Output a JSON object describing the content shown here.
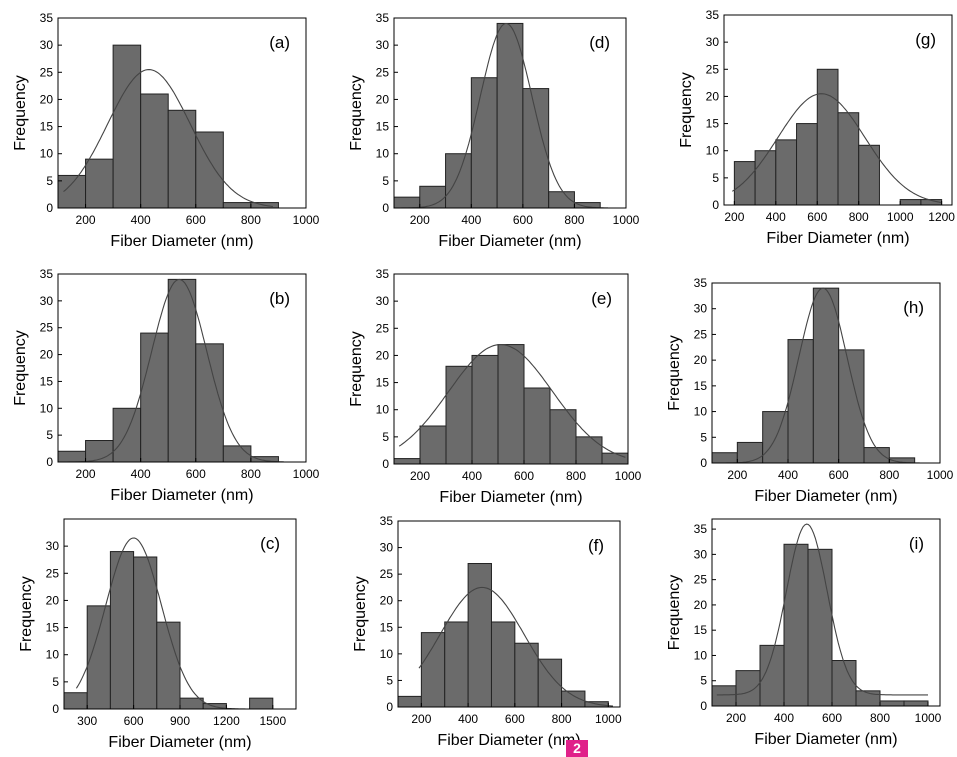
{
  "figure": {
    "badge": "2",
    "colors": {
      "bar": "#6b6b6b",
      "bar_edge": "#222222",
      "curve": "#444444",
      "axis": "#000000"
    }
  },
  "chart_data": [
    {
      "id": "a",
      "panel_label": "(a)",
      "type": "bar",
      "xlabel": "Fiber Diameter (nm)",
      "ylabel": "Frequency",
      "xlim": [
        100,
        1000
      ],
      "ylim": [
        0,
        35
      ],
      "xticks": [
        200,
        400,
        600,
        800,
        1000
      ],
      "yticks": [
        0,
        5,
        10,
        15,
        20,
        25,
        30,
        35
      ],
      "bin_width": 100,
      "bars": [
        {
          "x": 150,
          "y": 6
        },
        {
          "x": 250,
          "y": 9
        },
        {
          "x": 350,
          "y": 30
        },
        {
          "x": 450,
          "y": 21
        },
        {
          "x": 550,
          "y": 18
        },
        {
          "x": 650,
          "y": 14
        },
        {
          "x": 750,
          "y": 1
        },
        {
          "x": 850,
          "y": 1
        }
      ],
      "fit": {
        "type": "gaussian",
        "mean": 430,
        "sd": 150,
        "peak": 25.5,
        "range": [
          120,
          880
        ]
      }
    },
    {
      "id": "d",
      "panel_label": "(d)",
      "type": "bar",
      "xlabel": "Fiber Diameter (nm)",
      "ylabel": "Frequency",
      "xlim": [
        100,
        1000
      ],
      "ylim": [
        0,
        35
      ],
      "xticks": [
        200,
        400,
        600,
        800,
        1000
      ],
      "yticks": [
        0,
        5,
        10,
        15,
        20,
        25,
        30,
        35
      ],
      "bin_width": 100,
      "bars": [
        {
          "x": 150,
          "y": 2
        },
        {
          "x": 250,
          "y": 4
        },
        {
          "x": 350,
          "y": 10
        },
        {
          "x": 450,
          "y": 24
        },
        {
          "x": 550,
          "y": 34
        },
        {
          "x": 650,
          "y": 22
        },
        {
          "x": 750,
          "y": 3
        },
        {
          "x": 850,
          "y": 1
        }
      ],
      "fit": {
        "type": "gaussian",
        "mean": 535,
        "sd": 100,
        "peak": 34,
        "range": [
          120,
          930
        ]
      }
    },
    {
      "id": "g",
      "panel_label": "(g)",
      "type": "bar",
      "xlabel": "Fiber Diameter (nm)",
      "ylabel": "Frequency",
      "xlim": [
        150,
        1250
      ],
      "ylim": [
        0,
        35
      ],
      "xticks": [
        200,
        400,
        600,
        800,
        1000,
        1200
      ],
      "yticks": [
        0,
        5,
        10,
        15,
        20,
        25,
        30,
        35
      ],
      "bin_width": 100,
      "bars": [
        {
          "x": 250,
          "y": 8
        },
        {
          "x": 350,
          "y": 10
        },
        {
          "x": 450,
          "y": 12
        },
        {
          "x": 550,
          "y": 15
        },
        {
          "x": 650,
          "y": 25
        },
        {
          "x": 750,
          "y": 17
        },
        {
          "x": 850,
          "y": 11
        },
        {
          "x": 1050,
          "y": 1
        },
        {
          "x": 1150,
          "y": 1
        }
      ],
      "fit": {
        "type": "gaussian",
        "mean": 620,
        "sd": 210,
        "peak": 20.5,
        "range": [
          190,
          1200
        ]
      }
    },
    {
      "id": "b",
      "panel_label": "(b)",
      "type": "bar",
      "xlabel": "Fiber Diameter (nm)",
      "ylabel": "Frequency",
      "xlim": [
        100,
        1000
      ],
      "ylim": [
        0,
        35
      ],
      "xticks": [
        200,
        400,
        600,
        800,
        1000
      ],
      "yticks": [
        0,
        5,
        10,
        15,
        20,
        25,
        30,
        35
      ],
      "bin_width": 100,
      "bars": [
        {
          "x": 150,
          "y": 2
        },
        {
          "x": 250,
          "y": 4
        },
        {
          "x": 350,
          "y": 10
        },
        {
          "x": 450,
          "y": 24
        },
        {
          "x": 550,
          "y": 34
        },
        {
          "x": 650,
          "y": 22
        },
        {
          "x": 750,
          "y": 3
        },
        {
          "x": 850,
          "y": 1
        }
      ],
      "fit": {
        "type": "gaussian",
        "mean": 540,
        "sd": 100,
        "peak": 34,
        "range": [
          120,
          920
        ]
      }
    },
    {
      "id": "e",
      "panel_label": "(e)",
      "type": "bar",
      "xlabel": "Fiber Diameter (nm)",
      "ylabel": "Frequency",
      "xlim": [
        100,
        1000
      ],
      "ylim": [
        0,
        35
      ],
      "xticks": [
        200,
        400,
        600,
        800,
        1000
      ],
      "yticks": [
        0,
        5,
        10,
        15,
        20,
        25,
        30,
        35
      ],
      "bin_width": 100,
      "bars": [
        {
          "x": 150,
          "y": 1
        },
        {
          "x": 250,
          "y": 7
        },
        {
          "x": 350,
          "y": 18
        },
        {
          "x": 450,
          "y": 20
        },
        {
          "x": 550,
          "y": 22
        },
        {
          "x": 650,
          "y": 14
        },
        {
          "x": 750,
          "y": 10
        },
        {
          "x": 850,
          "y": 5
        },
        {
          "x": 950,
          "y": 2
        }
      ],
      "fit": {
        "type": "gaussian",
        "mean": 510,
        "sd": 200,
        "peak": 22,
        "range": [
          120,
          990
        ]
      }
    },
    {
      "id": "h",
      "panel_label": "(h)",
      "type": "bar",
      "xlabel": "Fiber Diameter (nm)",
      "ylabel": "Frequency",
      "xlim": [
        100,
        1000
      ],
      "ylim": [
        0,
        35
      ],
      "xticks": [
        200,
        400,
        600,
        800,
        1000
      ],
      "yticks": [
        0,
        5,
        10,
        15,
        20,
        25,
        30,
        35
      ],
      "bin_width": 100,
      "bars": [
        {
          "x": 150,
          "y": 2
        },
        {
          "x": 250,
          "y": 4
        },
        {
          "x": 350,
          "y": 10
        },
        {
          "x": 450,
          "y": 24
        },
        {
          "x": 550,
          "y": 34
        },
        {
          "x": 650,
          "y": 22
        },
        {
          "x": 750,
          "y": 3
        },
        {
          "x": 850,
          "y": 1
        }
      ],
      "fit": {
        "type": "gaussian",
        "mean": 538,
        "sd": 95,
        "peak": 34,
        "range": [
          120,
          920
        ]
      }
    },
    {
      "id": "c",
      "panel_label": "(c)",
      "type": "bar",
      "xlabel": "Fiber Diameter (nm)",
      "ylabel": "Frequency",
      "xlim": [
        150,
        1650
      ],
      "ylim": [
        0,
        35
      ],
      "xticks": [
        300,
        600,
        900,
        1200,
        1500
      ],
      "yticks": [
        0,
        5,
        10,
        15,
        20,
        25,
        30
      ],
      "bin_width": 150,
      "bars": [
        {
          "x": 225,
          "y": 3
        },
        {
          "x": 375,
          "y": 19
        },
        {
          "x": 525,
          "y": 29
        },
        {
          "x": 675,
          "y": 28
        },
        {
          "x": 825,
          "y": 16
        },
        {
          "x": 975,
          "y": 2
        },
        {
          "x": 1125,
          "y": 1
        },
        {
          "x": 1425,
          "y": 2
        }
      ],
      "fit": {
        "type": "gaussian",
        "mean": 600,
        "sd": 180,
        "peak": 31.5,
        "range": [
          230,
          1560
        ]
      }
    },
    {
      "id": "f",
      "panel_label": "(f)",
      "type": "bar",
      "xlabel": "Fiber Diameter (nm)",
      "ylabel": "Frequency",
      "xlim": [
        100,
        1050
      ],
      "ylim": [
        0,
        35
      ],
      "xticks": [
        200,
        400,
        600,
        800,
        1000
      ],
      "yticks": [
        0,
        5,
        10,
        15,
        20,
        25,
        30,
        35
      ],
      "bin_width": 100,
      "bars": [
        {
          "x": 150,
          "y": 2
        },
        {
          "x": 250,
          "y": 14
        },
        {
          "x": 350,
          "y": 16
        },
        {
          "x": 450,
          "y": 27
        },
        {
          "x": 550,
          "y": 16
        },
        {
          "x": 650,
          "y": 12
        },
        {
          "x": 750,
          "y": 9
        },
        {
          "x": 850,
          "y": 3
        },
        {
          "x": 950,
          "y": 1
        }
      ],
      "fit": {
        "type": "gaussian",
        "mean": 460,
        "sd": 180,
        "peak": 22.5,
        "range": [
          190,
          1020
        ]
      }
    },
    {
      "id": "i",
      "panel_label": "(i)",
      "type": "bar",
      "xlabel": "Fiber Diameter (nm)",
      "ylabel": "Frequency",
      "xlim": [
        100,
        1050
      ],
      "ylim": [
        0,
        37
      ],
      "xticks": [
        200,
        400,
        600,
        800,
        1000
      ],
      "yticks": [
        0,
        5,
        10,
        15,
        20,
        25,
        30,
        35
      ],
      "bin_width": 100,
      "bars": [
        {
          "x": 150,
          "y": 4
        },
        {
          "x": 250,
          "y": 7
        },
        {
          "x": 350,
          "y": 12
        },
        {
          "x": 450,
          "y": 32
        },
        {
          "x": 550,
          "y": 31
        },
        {
          "x": 650,
          "y": 9
        },
        {
          "x": 750,
          "y": 3
        },
        {
          "x": 850,
          "y": 1
        },
        {
          "x": 950,
          "y": 1
        }
      ],
      "fit": {
        "type": "gaussian",
        "mean": 495,
        "sd": 85,
        "peak": 36,
        "range": [
          120,
          1000
        ],
        "baseline": 2.2
      }
    }
  ]
}
